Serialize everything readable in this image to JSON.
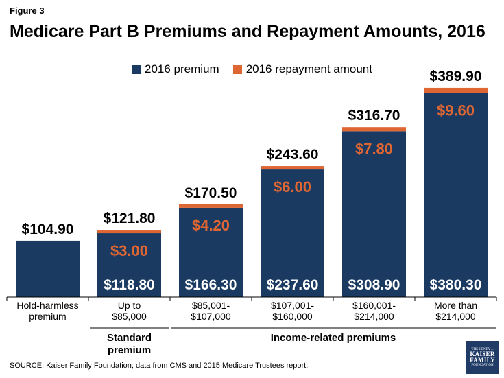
{
  "figure_label": "Figure 3",
  "title": "Medicare Part B Premiums and Repayment Amounts, 2016",
  "source": "SOURCE: Kaiser Family Foundation; data from CMS and 2015 Medicare Trustees report.",
  "logo": {
    "line1": "THE HENRY J.",
    "line2a": "KAISER",
    "line2b": "FAMILY",
    "line3": "FOUNDATION"
  },
  "colors": {
    "premium": "#1a3a61",
    "repayment": "#dd6633",
    "axis": "#000000"
  },
  "group_labels": {
    "standard": [
      "Standard",
      "premium"
    ],
    "income": "Income-related premiums"
  },
  "chart_data": {
    "type": "bar",
    "stacked": true,
    "categories": [
      [
        "Hold-harmless",
        "premium"
      ],
      [
        "Up to",
        "$85,000"
      ],
      [
        "$85,001-",
        "$107,000"
      ],
      [
        "$107,001-",
        "$160,000"
      ],
      [
        "$160,001-",
        "$214,000"
      ],
      [
        "More than",
        "$214,000"
      ]
    ],
    "series": [
      {
        "name": "2016 premium",
        "values": [
          104.9,
          118.8,
          166.3,
          237.6,
          308.9,
          380.3
        ],
        "labels": [
          null,
          "$118.80",
          "$166.30",
          "$237.60",
          "$308.90",
          "$380.30"
        ]
      },
      {
        "name": "2016 repayment amount",
        "values": [
          0,
          3.0,
          4.2,
          6.0,
          7.8,
          9.6
        ],
        "labels": [
          null,
          "$3.00",
          "$4.20",
          "$6.00",
          "$7.80",
          "$9.60"
        ]
      }
    ],
    "totals": [
      "$104.90",
      "$121.80",
      "$170.50",
      "$243.60",
      "$316.70",
      "$389.90"
    ],
    "ylim": [
      0,
      400
    ],
    "legend_position": "top",
    "grid": false
  }
}
